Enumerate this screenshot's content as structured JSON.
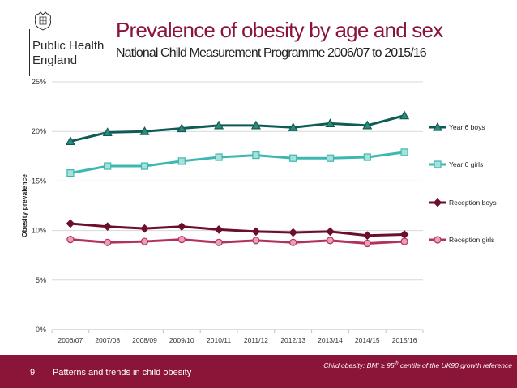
{
  "header": {
    "logo_lines": [
      "Public Health",
      "England"
    ],
    "title": "Prevalence of obesity by age and sex",
    "subtitle": "National Child Measurement Programme 2006/07 to 2015/16"
  },
  "chart_data": {
    "type": "line",
    "categories": [
      "2006/07",
      "2007/08",
      "2008/09",
      "2009/10",
      "2010/11",
      "2011/12",
      "2012/13",
      "2013/14",
      "2014/15",
      "2015/16"
    ],
    "ylabel": "Obesity prevalence",
    "xlabel": "",
    "ylim": [
      0,
      25
    ],
    "yticks": [
      "0%",
      "5%",
      "10%",
      "15%",
      "20%",
      "25%"
    ],
    "ytick_values": [
      0,
      5,
      10,
      15,
      20,
      25
    ],
    "grid": true,
    "legend": "right",
    "series": [
      {
        "name": "Year 6 boys",
        "values": [
          19.0,
          19.9,
          20.0,
          20.3,
          20.6,
          20.6,
          20.4,
          20.8,
          20.6,
          21.6
        ],
        "color": "#0f5c57",
        "fill": "#2e8b7a",
        "marker": "triangle"
      },
      {
        "name": "Year 6 girls",
        "values": [
          15.8,
          16.5,
          16.5,
          17.0,
          17.4,
          17.6,
          17.3,
          17.3,
          17.4,
          17.9
        ],
        "color": "#3cb8b0",
        "fill": "#a8e0da",
        "marker": "square"
      },
      {
        "name": "Reception boys",
        "values": [
          10.7,
          10.4,
          10.2,
          10.4,
          10.1,
          9.9,
          9.8,
          9.9,
          9.5,
          9.6
        ],
        "color": "#6b0f2a",
        "fill": "#6b0f2a",
        "marker": "diamond"
      },
      {
        "name": "Reception girls",
        "values": [
          9.1,
          8.8,
          8.9,
          9.1,
          8.8,
          9.0,
          8.8,
          9.0,
          8.7,
          8.9
        ],
        "color": "#b33060",
        "fill": "#e7a0b8",
        "marker": "circle"
      }
    ]
  },
  "footer": {
    "page_number": "9",
    "title": "Patterns and trends in child obesity",
    "footnote_pre": "Child obesity: BMI ≥ 95",
    "footnote_sup": "th",
    "footnote_post": " centile of the UK90 growth reference"
  }
}
